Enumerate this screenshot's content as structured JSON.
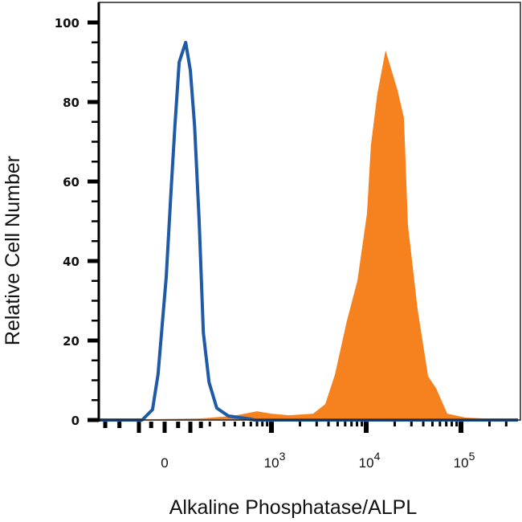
{
  "chart_data": {
    "type": "area",
    "title": "",
    "xlabel": "Alkaline Phosphatase/ALPL",
    "ylabel": "Relative Cell Number",
    "x_scale": "biexponential",
    "xlim": [
      -350,
      400000
    ],
    "ylim": [
      0,
      105
    ],
    "x_ticks": [
      {
        "value": 0,
        "base": "0",
        "exp": ""
      },
      {
        "value": 1000,
        "base": "10",
        "exp": "3"
      },
      {
        "value": 10000,
        "base": "10",
        "exp": "4"
      },
      {
        "value": 100000,
        "base": "10",
        "exp": "5"
      }
    ],
    "y_ticks": [
      "0",
      "20",
      "40",
      "60",
      "80",
      "100"
    ],
    "grid": false,
    "colors": {
      "control": "#1f5aa6",
      "stained": "#f5821f"
    },
    "series": [
      {
        "style": "filled",
        "color": "#f5821f",
        "x": [
          -350,
          150,
          380,
          700,
          1000,
          1540,
          2760,
          3700,
          4670,
          6260,
          8070,
          10200,
          11200,
          13100,
          16000,
          21400,
          25000,
          27600,
          34800,
          45000,
          54600,
          71800,
          112000,
          400000
        ],
        "y": [
          0,
          0.4,
          1,
          2.2,
          1.6,
          1.2,
          1.6,
          4,
          11.4,
          25,
          35,
          52,
          69,
          82,
          93,
          83,
          76,
          49,
          28,
          11,
          8,
          1.6,
          0.6,
          0
        ]
      },
      {
        "style": "outline",
        "color": "#1f5aa6",
        "x": [
          -350,
          -86,
          -45,
          -24,
          6,
          23,
          38,
          54,
          80,
          100,
          119,
          141,
          163,
          195,
          245,
          337,
          570,
          660,
          400000
        ],
        "y": [
          0,
          0,
          2.6,
          11.5,
          36,
          57,
          74,
          90,
          95,
          88,
          74,
          50,
          22,
          9.5,
          3,
          1,
          0.3,
          0,
          0
        ]
      }
    ]
  }
}
